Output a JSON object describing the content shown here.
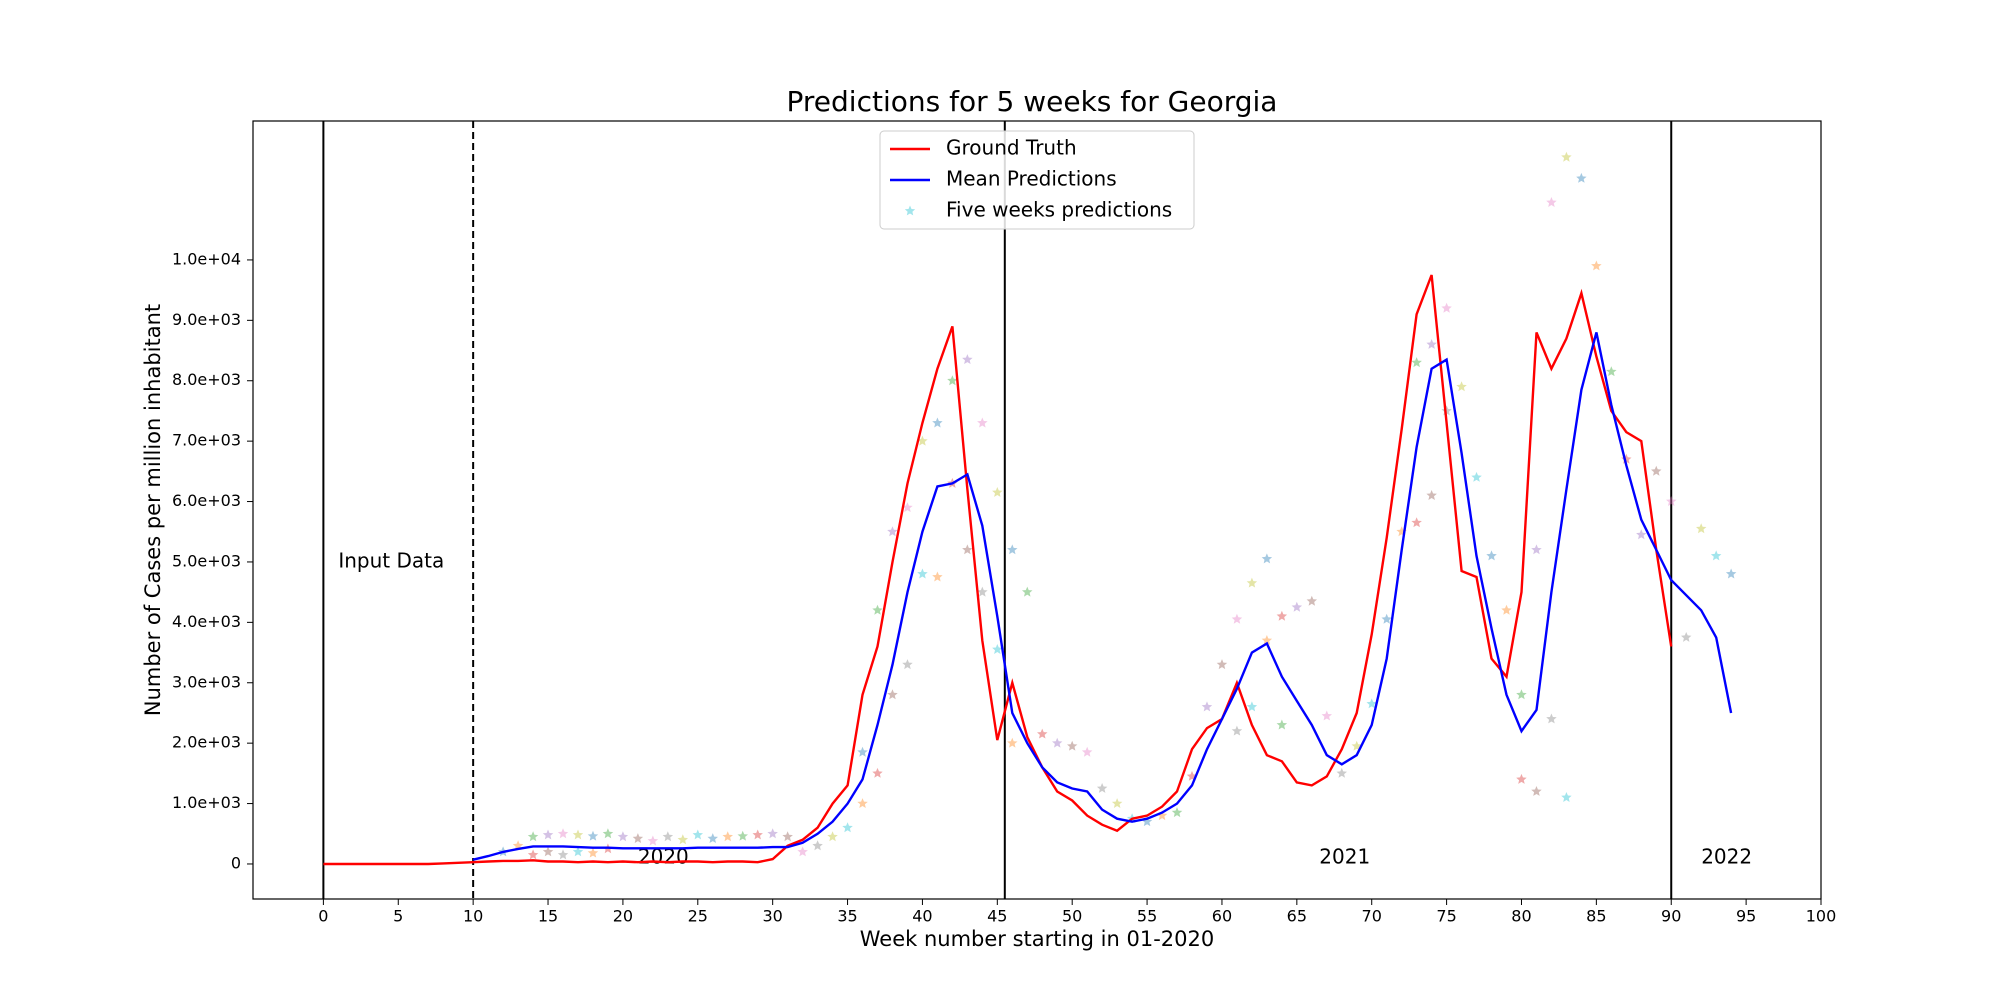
{
  "chart_data": {
    "type": "line",
    "title": "Predictions for 5 weeks for Georgia",
    "x_label": "Week number starting in 01-2020",
    "y_label": "Number of Cases per million inhabitant",
    "xlim": [
      -4.7,
      100
    ],
    "ylim": [
      -580,
      12300
    ],
    "xticks": [
      0,
      5,
      10,
      15,
      20,
      25,
      30,
      35,
      40,
      45,
      50,
      55,
      60,
      65,
      70,
      75,
      80,
      85,
      90,
      95,
      100
    ],
    "yticks": [
      0,
      {
        "value": 1000,
        "label": "1.0e+03"
      },
      {
        "value": 2000,
        "label": "2.0e+03"
      },
      {
        "value": 3000,
        "label": "3.0e+03"
      },
      {
        "value": 4000,
        "label": "4.0e+03"
      },
      {
        "value": 5000,
        "label": "5.0e+03"
      },
      {
        "value": 6000,
        "label": "6.0e+03"
      },
      {
        "value": 7000,
        "label": "7.0e+03"
      },
      {
        "value": 8000,
        "label": "8.0e+03"
      },
      {
        "value": 9000,
        "label": "9.0e+03"
      },
      {
        "value": 10000,
        "label": "1.0e+04"
      }
    ],
    "legend": "upper center",
    "vlines": [
      {
        "x": 0,
        "style": "solid"
      },
      {
        "x": 10,
        "style": "dashed"
      },
      {
        "x": 45.5,
        "style": "solid"
      },
      {
        "x": 90,
        "style": "solid"
      }
    ],
    "annotations": [
      {
        "text": "Input Data",
        "x": 1,
        "y": 5000
      },
      {
        "text": "2020",
        "x": 21,
        "y": 100
      },
      {
        "text": "2021",
        "x": 66.5,
        "y": 100
      },
      {
        "text": "2022",
        "x": 92,
        "y": 100
      }
    ],
    "series": [
      {
        "name": "Ground Truth",
        "color": "#ff0000",
        "kind": "line",
        "x": [
          0,
          1,
          2,
          3,
          4,
          5,
          6,
          7,
          8,
          9,
          10,
          11,
          12,
          13,
          14,
          15,
          16,
          17,
          18,
          19,
          20,
          21,
          22,
          23,
          24,
          25,
          26,
          27,
          28,
          29,
          30,
          31,
          32,
          33,
          34,
          35,
          36,
          37,
          38,
          39,
          40,
          41,
          42,
          43,
          44,
          45,
          46,
          47,
          48,
          49,
          50,
          51,
          52,
          53,
          54,
          55,
          56,
          57,
          58,
          59,
          60,
          61,
          62,
          63,
          64,
          65,
          66,
          67,
          68,
          69,
          70,
          71,
          72,
          73,
          74,
          75,
          76,
          77,
          78,
          79,
          80,
          81,
          82,
          83,
          84,
          85,
          86,
          87,
          88,
          89,
          90
        ],
        "values": [
          0,
          0,
          0,
          0,
          0,
          0,
          0,
          0,
          10,
          20,
          30,
          40,
          50,
          50,
          60,
          40,
          40,
          30,
          40,
          30,
          40,
          30,
          40,
          30,
          40,
          40,
          30,
          40,
          40,
          30,
          80,
          300,
          400,
          600,
          1000,
          1300,
          2800,
          3600,
          5000,
          6300,
          7300,
          8200,
          8900,
          6200,
          3700,
          2050,
          3000,
          2100,
          1600,
          1200,
          1050,
          800,
          650,
          550,
          750,
          800,
          950,
          1200,
          1900,
          2250,
          2400,
          3000,
          2300,
          1800,
          1700,
          1350,
          1300,
          1450,
          1900,
          2500,
          3800,
          5400,
          7200,
          9100,
          9750,
          7300,
          4850,
          4750,
          3400,
          3100,
          4500,
          8800,
          8200,
          8700,
          9450,
          8400,
          7500,
          7150,
          7000,
          5200,
          3600
        ]
      },
      {
        "name": "Mean Predictions",
        "color": "#0000ff",
        "kind": "line",
        "x": [
          10,
          11,
          12,
          13,
          14,
          15,
          16,
          17,
          18,
          19,
          20,
          21,
          22,
          23,
          24,
          25,
          26,
          27,
          28,
          29,
          30,
          31,
          32,
          33,
          34,
          35,
          36,
          37,
          38,
          39,
          40,
          41,
          42,
          43,
          44,
          45,
          46,
          47,
          48,
          49,
          50,
          51,
          52,
          53,
          54,
          55,
          56,
          57,
          58,
          59,
          60,
          61,
          62,
          63,
          64,
          65,
          66,
          67,
          68,
          69,
          70,
          71,
          72,
          73,
          74,
          75,
          76,
          77,
          78,
          79,
          80,
          81,
          82,
          83,
          84,
          85,
          86,
          87,
          88,
          89,
          90,
          91,
          92,
          93,
          94
        ],
        "values": [
          70,
          130,
          200,
          250,
          290,
          290,
          290,
          280,
          270,
          270,
          260,
          260,
          260,
          260,
          260,
          270,
          270,
          270,
          270,
          270,
          280,
          280,
          350,
          500,
          700,
          1000,
          1400,
          2300,
          3300,
          4500,
          5500,
          6250,
          6300,
          6450,
          5600,
          4100,
          2500,
          2000,
          1600,
          1350,
          1250,
          1200,
          900,
          750,
          700,
          750,
          850,
          1000,
          1300,
          1900,
          2400,
          2900,
          3500,
          3650,
          3100,
          2700,
          2300,
          1800,
          1650,
          1800,
          2300,
          3400,
          5200,
          6900,
          8200,
          8350,
          6800,
          5100,
          3900,
          2800,
          2200,
          2550,
          4500,
          6200,
          7850,
          8800,
          7600,
          6600,
          5700,
          5200,
          4700,
          4450,
          4200,
          3750,
          2500
        ]
      },
      {
        "name": "Five weeks predictions",
        "color": "#17becf",
        "kind": "stars",
        "point_colors": [
          "#1f77b4",
          "#ff7f0e",
          "#2ca02c",
          "#d62728",
          "#9467bd",
          "#8c564b",
          "#e377c2",
          "#7f7f7f",
          "#bcbd22",
          "#17becf"
        ],
        "x": [
          12,
          13,
          14,
          14,
          15,
          15,
          16,
          16,
          17,
          17,
          18,
          18,
          19,
          19,
          20,
          21,
          22,
          23,
          24,
          25,
          26,
          27,
          28,
          29,
          30,
          31,
          32,
          33,
          34,
          35,
          36,
          36,
          37,
          37,
          38,
          38,
          39,
          39,
          40,
          40,
          41,
          41,
          42,
          42,
          43,
          43,
          44,
          44,
          45,
          45,
          46,
          46,
          47,
          48,
          49,
          50,
          51,
          52,
          53,
          54,
          55,
          56,
          57,
          58,
          59,
          60,
          61,
          61,
          62,
          62,
          63,
          63,
          64,
          64,
          65,
          66,
          67,
          68,
          69,
          70,
          71,
          72,
          73,
          73,
          74,
          74,
          75,
          75,
          76,
          77,
          78,
          79,
          80,
          80,
          81,
          81,
          82,
          82,
          83,
          83,
          84,
          85,
          86,
          87,
          88,
          89,
          90,
          91,
          92,
          93,
          94
        ],
        "values": [
          200,
          300,
          450,
          150,
          480,
          200,
          500,
          150,
          480,
          200,
          460,
          180,
          500,
          250,
          450,
          420,
          380,
          450,
          400,
          480,
          420,
          450,
          460,
          480,
          500,
          450,
          200,
          300,
          450,
          600,
          1850,
          1000,
          4200,
          1500,
          5500,
          2800,
          5900,
          3300,
          7000,
          4800,
          7300,
          4750,
          8000,
          6300,
          8350,
          5200,
          7300,
          4500,
          6150,
          3550,
          5200,
          2000,
          4500,
          2150,
          2000,
          1950,
          1850,
          1250,
          1000,
          750,
          700,
          800,
          850,
          1450,
          2600,
          3300,
          4050,
          2200,
          4650,
          2600,
          5050,
          3700,
          2300,
          4100,
          4250,
          4350,
          2450,
          1500,
          1950,
          2650,
          4050,
          5500,
          8300,
          5650,
          8600,
          6100,
          9200,
          7500,
          7900,
          6400,
          5100,
          4200,
          2800,
          1400,
          5200,
          1200,
          10950,
          2400,
          11700,
          1100,
          11350,
          9900,
          8150,
          6700,
          5450,
          6500,
          6000,
          3750,
          5550,
          5100,
          4800
        ]
      }
    ]
  }
}
